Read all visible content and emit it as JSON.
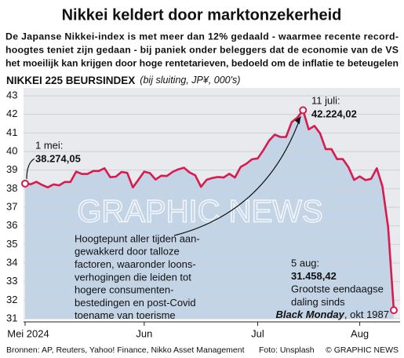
{
  "chart_data": {
    "type": "line",
    "title": "Nikkei keldert door marktonzekerheid",
    "subtitle": [
      "De Japanse Nikkei-index is met meer dan 12% gedaald - waarmee recente record-",
      "hoogtes teniet zijn gedaan - bij paniek onder beleggers dat de economie van de VS",
      "het moeilijk kan krijgen door hoge rentetarieven, bedoeld om de inflatie te beteugelen"
    ],
    "ylabel": "NIKKEI 225 BEURSINDEX",
    "ylabel_note": "(bij sluiting, JP¥, 000's)",
    "categories": [
      "Mei 2024",
      null,
      null,
      null,
      null,
      null,
      null,
      null,
      null,
      null,
      null,
      null,
      null,
      null,
      null,
      null,
      null,
      null,
      null,
      null,
      null,
      "Jun",
      null,
      null,
      null,
      null,
      null,
      null,
      null,
      null,
      null,
      null,
      null,
      null,
      null,
      null,
      null,
      null,
      null,
      null,
      null,
      "Jul",
      null,
      null,
      null,
      null,
      null,
      null,
      null,
      null,
      null,
      null,
      null,
      null,
      null,
      null,
      null,
      null,
      null,
      "Aug",
      null,
      null,
      null,
      null,
      null,
      null
    ],
    "series": [
      {
        "name": "Nikkei 225",
        "color": "#d91a4c",
        "values": [
          38.27405,
          38.24,
          38.37,
          38.2,
          38.07,
          38.23,
          38.18,
          38.36,
          38.36,
          38.92,
          38.79,
          38.79,
          38.95,
          38.95,
          39.1,
          38.62,
          38.65,
          38.9,
          38.85,
          38.07,
          38.49,
          38.92,
          38.84,
          38.49,
          38.7,
          38.68,
          38.9,
          39.04,
          39.13,
          38.87,
          38.72,
          38.1,
          38.48,
          38.57,
          38.63,
          38.6,
          38.8,
          38.6,
          39.17,
          39.34,
          39.58,
          39.63,
          40.07,
          40.58,
          40.91,
          40.78,
          40.78,
          41.58,
          41.83,
          42.22402,
          41.19,
          41.38,
          40.98,
          40.13,
          40.13,
          39.59,
          39.6,
          39.16,
          38.47,
          38.66,
          38.46,
          38.53,
          39.1,
          38.13,
          35.91,
          31.45842
        ]
      }
    ],
    "ylim": [
      31,
      43
    ],
    "yticks": [
      31,
      32,
      33,
      34,
      35,
      36,
      37,
      38,
      39,
      40,
      41,
      42,
      43
    ],
    "grid": true,
    "annotations": {
      "start": [
        "1 mei:",
        "38.274,05"
      ],
      "peak": [
        "11 juli:",
        "42.224,02"
      ],
      "end": [
        "5 aug:",
        "31.458,42",
        "Grootste eendaagse",
        "daling sinds"
      ],
      "end_last": [
        "Black Monday",
        ", okt 1987"
      ],
      "note": [
        "Hoogtepunt aller tijden aan-",
        "gewakkerd door talloze",
        "factoren, waaronder loons-",
        "verhogingen die leiden tot",
        "hogere consumenten-",
        "bestedingen en post-Covid",
        "toename van toerisme"
      ]
    },
    "watermark": "GRAPHIC NEWS",
    "source": "Bronnen: AP, Reuters, Yahoo! Finance, Nikko Asset Management",
    "photo_credit": "Foto: Unsplash",
    "credit": "© GRAPHIC NEWS"
  }
}
